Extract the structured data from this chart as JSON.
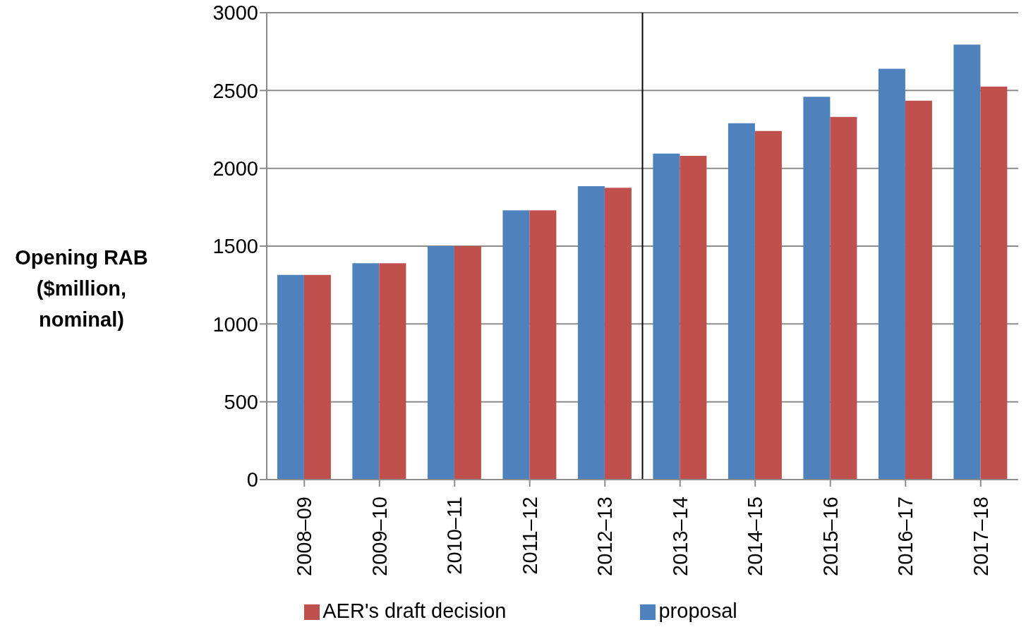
{
  "chart_data": {
    "type": "bar",
    "ylabel": "Opening RAB ($million, nominal)",
    "categories": [
      "2008–09",
      "2009–10",
      "2010–11",
      "2011–12",
      "2012–13",
      "2013–14",
      "2014–15",
      "2015–16",
      "2016–17",
      "2017–18"
    ],
    "series": [
      {
        "name": "proposal",
        "color": "#4f81bd",
        "values": [
          1315,
          1390,
          1500,
          1730,
          1885,
          2095,
          2290,
          2460,
          2640,
          2795
        ]
      },
      {
        "name": "AER's draft decision",
        "color": "#c0504d",
        "values": [
          1315,
          1390,
          1500,
          1730,
          1875,
          2080,
          2240,
          2330,
          2435,
          2525
        ]
      }
    ],
    "ylim": [
      0,
      3000
    ],
    "yticks": [
      0,
      500,
      1000,
      1500,
      2000,
      2500,
      3000
    ],
    "grid": "y",
    "legend": "bottom",
    "ref_lines": [
      {
        "axis": "x",
        "value": "2013–14",
        "color": "#000000"
      }
    ]
  }
}
